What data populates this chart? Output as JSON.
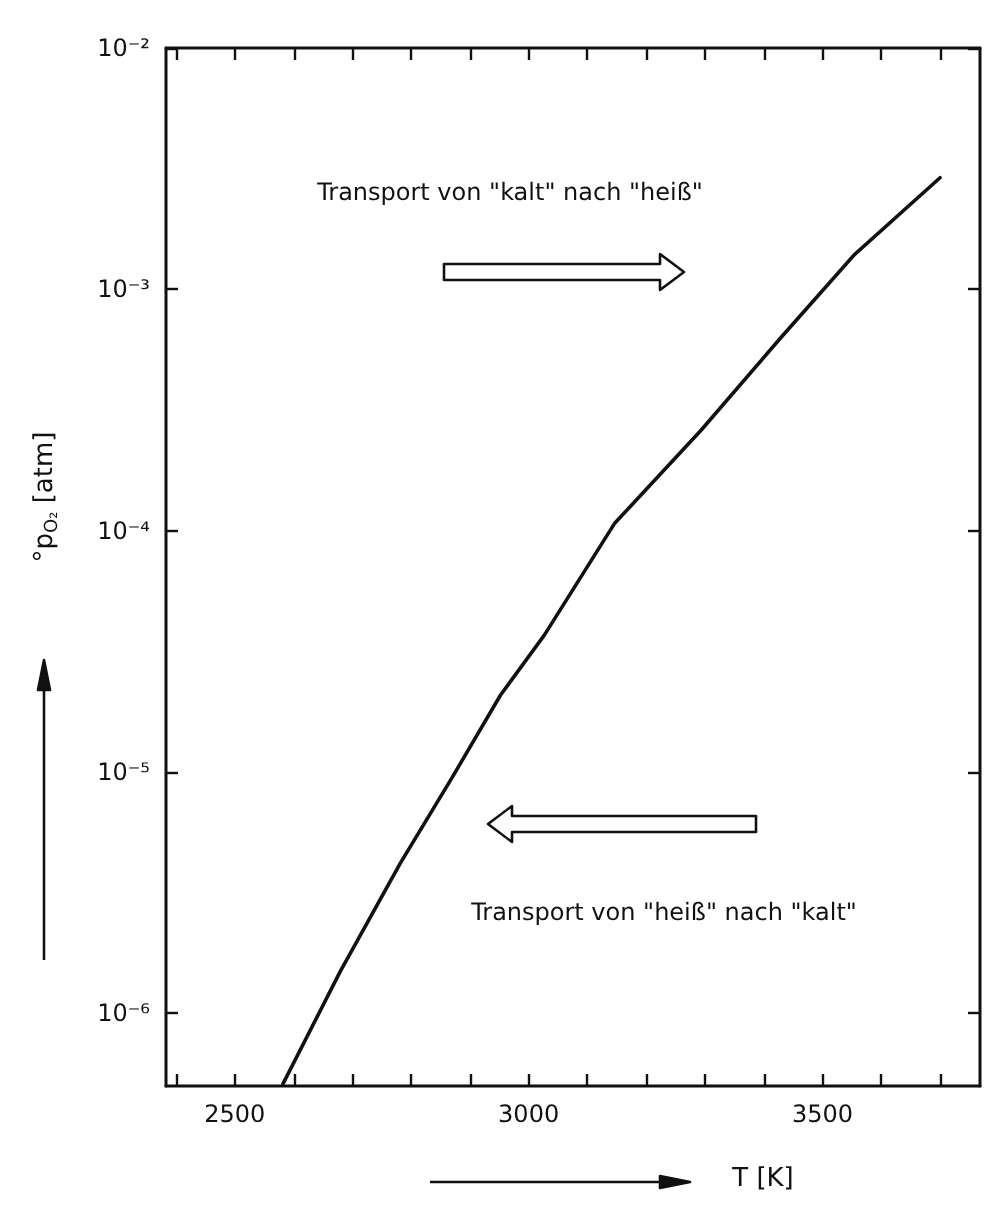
{
  "chart_data": {
    "type": "line",
    "xlabel": "T [K]",
    "ylabel": "°p$_{O₂}$ [atm]",
    "annotations": [
      "Transport von \"kalt\" nach \"heiß\"",
      "Transport von \"heiß\" nach \"kalt\""
    ],
    "x": [
      2582,
      2680,
      2782,
      2870,
      2952,
      3027,
      3146,
      3293,
      3429,
      3554,
      3700
    ],
    "series": [
      {
        "color": "#111111",
        "values": [
          5.1e-07,
          1.5e-06,
          4.2e-06,
          9.5e-06,
          2.08e-05,
          3.7e-05,
          0.000107,
          0.00026,
          0.00063,
          0.00139,
          0.0029
        ]
      }
    ],
    "log": "y",
    "xlim": [
      2383,
      3768
    ],
    "xticks": [
      {
        "value": 2400,
        "label": null
      },
      2500,
      {
        "value": 2600,
        "label": null
      },
      {
        "value": 2700,
        "label": null
      },
      {
        "value": 2800,
        "label": null
      },
      {
        "value": 2900,
        "label": null
      },
      3000,
      {
        "value": 3100,
        "label": null
      },
      {
        "value": 3200,
        "label": null
      },
      {
        "value": 3300,
        "label": null
      },
      {
        "value": 3400,
        "label": null
      },
      3500,
      {
        "value": 3600,
        "label": null
      },
      {
        "value": 3700,
        "label": null
      }
    ],
    "ylim": [
      5e-07,
      0.01
    ],
    "yticks": [
      {
        "value": 1e-06,
        "label": "10⁻⁶"
      },
      {
        "value": 1e-05,
        "label": "10⁻⁵"
      },
      {
        "value": 0.0001,
        "label": "10⁻⁴"
      },
      {
        "value": 0.001,
        "label": "10⁻³"
      },
      {
        "value": 0.01,
        "label": "10⁻²"
      }
    ],
    "grid": false,
    "marker": "none",
    "line_style": "solid"
  }
}
